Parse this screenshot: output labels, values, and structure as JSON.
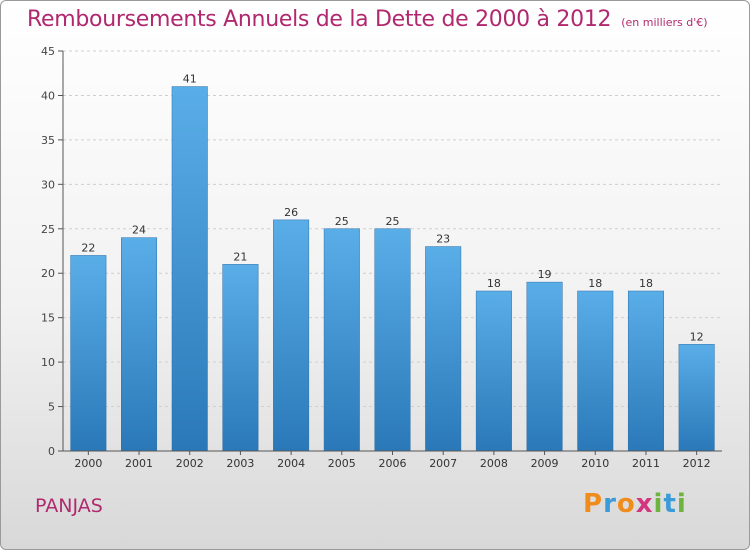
{
  "title": "Remboursements Annuels de la Dette de 2000 à 2012",
  "subtitle": "(en milliers d'€)",
  "commune": "PANJAS",
  "logo": {
    "text": "Proxiti",
    "letters": [
      {
        "char": "P",
        "color": "#f08c1c"
      },
      {
        "char": "r",
        "color": "#3a9bd8"
      },
      {
        "char": "o",
        "color": "#f08c1c"
      },
      {
        "char": "x",
        "color": "#d4357f"
      },
      {
        "char": "i",
        "color": "#6cb33f"
      },
      {
        "char": "t",
        "color": "#3a9bd8"
      },
      {
        "char": "i",
        "color": "#6cb33f"
      }
    ]
  },
  "colors": {
    "title": "#b0296e",
    "bar_top": "#5aaee8",
    "bar_bottom": "#2a78b8",
    "axis": "#555555",
    "grid": "#cfcfcf"
  },
  "chart_data": {
    "type": "bar",
    "title": "Remboursements Annuels de la Dette de 2000 à 2012",
    "subtitle": "(en milliers d'€)",
    "categories": [
      "2000",
      "2001",
      "2002",
      "2003",
      "2004",
      "2005",
      "2006",
      "2007",
      "2008",
      "2009",
      "2010",
      "2011",
      "2012"
    ],
    "values": [
      22,
      24,
      41,
      21,
      26,
      25,
      25,
      23,
      18,
      19,
      18,
      18,
      12
    ],
    "ylim": [
      0,
      45
    ],
    "yticks": [
      0,
      5,
      10,
      15,
      20,
      25,
      30,
      35,
      40,
      45
    ],
    "grid": true,
    "legend": "none"
  }
}
